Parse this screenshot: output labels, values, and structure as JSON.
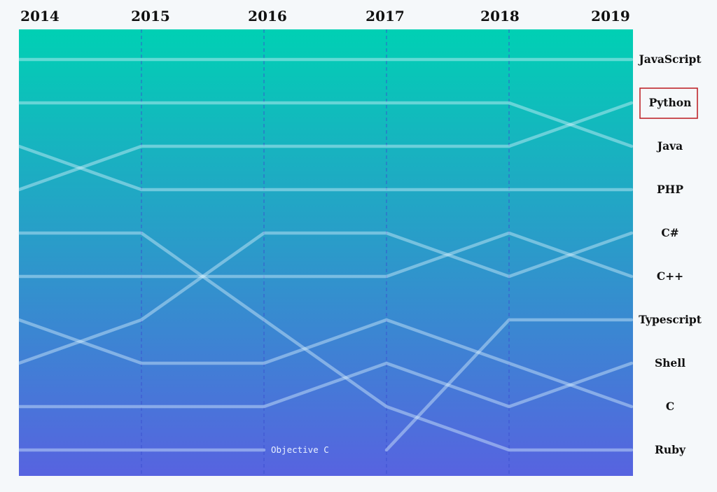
{
  "chart_data": {
    "type": "bump",
    "title": "",
    "xlabel": "",
    "ylabel": "",
    "x": [
      "2014",
      "2015",
      "2016",
      "2017",
      "2018",
      "2019"
    ],
    "rank_range": [
      1,
      10
    ],
    "gradient_top": "#00d0b4",
    "gradient_bottom": "#5763e0",
    "line_color": "#dff6ff",
    "series": [
      {
        "name": "JavaScript",
        "ranks": [
          1,
          1,
          1,
          1,
          1,
          1
        ]
      },
      {
        "name": "Python",
        "ranks": [
          4,
          3,
          3,
          3,
          3,
          2
        ]
      },
      {
        "name": "Java",
        "ranks": [
          2,
          2,
          2,
          2,
          2,
          3
        ]
      },
      {
        "name": "PHP",
        "ranks": [
          3,
          4,
          4,
          4,
          4,
          4
        ]
      },
      {
        "name": "C#",
        "ranks": [
          8,
          7,
          5,
          5,
          6,
          5
        ]
      },
      {
        "name": "C++",
        "ranks": [
          6,
          6,
          6,
          6,
          5,
          6
        ]
      },
      {
        "name": "Typescript",
        "ranks": [
          null,
          null,
          null,
          10,
          7,
          7
        ]
      },
      {
        "name": "Shell",
        "ranks": [
          9,
          9,
          9,
          8,
          9,
          8
        ]
      },
      {
        "name": "C",
        "ranks": [
          7,
          8,
          8,
          7,
          8,
          9
        ]
      },
      {
        "name": "Ruby",
        "ranks": [
          5,
          5,
          7,
          9,
          10,
          10
        ]
      },
      {
        "name": "Objective C",
        "ranks": [
          10,
          10,
          10,
          null,
          null,
          null
        ]
      }
    ],
    "highlighted": "Python",
    "highlight_color": "#c0262c",
    "annotations": [
      {
        "text": "Objective C",
        "series": "Objective C"
      }
    ]
  }
}
